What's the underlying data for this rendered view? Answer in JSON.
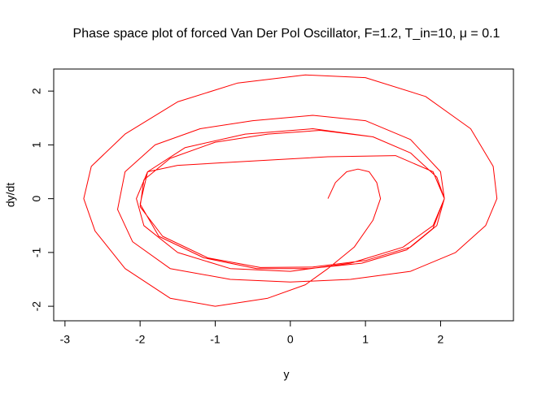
{
  "chart_data": {
    "type": "line",
    "title": "Phase space plot of forced Van Der Pol Oscillator, F=1.2, T_in=10, μ = 0.1",
    "x_label": "y",
    "y_label": "dy/dt",
    "xlim": [
      -3.15,
      2.97
    ],
    "ylim": [
      -2.27,
      2.41
    ],
    "xticks": [
      -3,
      -2,
      -1,
      0,
      1,
      2
    ],
    "yticks": [
      -2,
      -1,
      0,
      1,
      2
    ],
    "x": [
      0.5,
      0.6,
      0.75,
      0.9,
      1.05,
      1.15,
      1.2,
      1.1,
      0.85,
      0.5,
      0.2,
      -0.3,
      -1.0,
      -1.6,
      -2.2,
      -2.6,
      -2.75,
      -2.65,
      -2.2,
      -1.5,
      -0.7,
      0.2,
      1.0,
      1.8,
      2.4,
      2.7,
      2.75,
      2.6,
      2.2,
      1.6,
      0.8,
      0.0,
      -0.8,
      -1.6,
      -2.1,
      -2.3,
      -2.2,
      -1.8,
      -1.2,
      -0.5,
      0.3,
      1.0,
      1.6,
      2.0,
      2.05,
      1.9,
      1.5,
      0.8,
      0.0,
      -0.8,
      -1.5,
      -1.95,
      -2.05,
      -1.9,
      -1.4,
      -0.6,
      0.3,
      1.1,
      1.6,
      1.95,
      2.05,
      1.95,
      1.6,
      1.0,
      0.3,
      -0.4,
      -1.1,
      -1.7,
      -2.0,
      -1.95,
      -1.6,
      -1.0,
      -0.3,
      0.4,
      1.1,
      1.6,
      1.95,
      2.05,
      1.9,
      1.55,
      0.95,
      0.25,
      -0.45,
      -1.15,
      -1.75,
      -2.0,
      -1.9,
      -1.5,
      -0.5,
      0.5,
      1.4,
      1.9,
      2.05,
      1.95,
      1.6,
      1.0,
      0.3,
      -0.4,
      -1.1,
      -1.7,
      -2.0,
      -1.95,
      -1.6,
      -1.0,
      -0.3,
      0.4,
      1.1,
      1.6,
      1.95,
      2.05
    ],
    "series": [
      {
        "name": "trajectory",
        "color": "#ff0000",
        "values": [
          0.0,
          0.3,
          0.5,
          0.55,
          0.5,
          0.3,
          0.0,
          -0.4,
          -0.9,
          -1.3,
          -1.6,
          -1.85,
          -2.0,
          -1.85,
          -1.3,
          -0.6,
          0.0,
          0.6,
          1.2,
          1.8,
          2.15,
          2.3,
          2.25,
          1.9,
          1.3,
          0.6,
          0.0,
          -0.5,
          -1.0,
          -1.35,
          -1.5,
          -1.55,
          -1.5,
          -1.3,
          -0.8,
          -0.2,
          0.5,
          1.0,
          1.3,
          1.45,
          1.55,
          1.45,
          1.1,
          0.5,
          0.0,
          -0.5,
          -0.9,
          -1.2,
          -1.35,
          -1.3,
          -1.0,
          -0.5,
          0.0,
          0.5,
          0.95,
          1.2,
          1.3,
          1.15,
          0.85,
          0.4,
          0.0,
          -0.5,
          -0.9,
          -1.15,
          -1.27,
          -1.28,
          -1.1,
          -0.7,
          -0.15,
          0.35,
          0.75,
          1.05,
          1.2,
          1.27,
          1.15,
          0.85,
          0.4,
          0.0,
          -0.55,
          -0.95,
          -1.2,
          -1.3,
          -1.3,
          -1.1,
          -0.7,
          -0.1,
          0.5,
          0.62,
          0.7,
          0.78,
          0.8,
          0.5,
          0.0,
          -0.5,
          -0.9,
          -1.15,
          -1.27,
          -1.28,
          -1.1,
          -0.7,
          -0.15,
          0.35,
          0.75,
          1.05,
          1.2,
          1.27,
          1.15,
          0.85,
          0.4,
          0.0
        ]
      }
    ]
  }
}
